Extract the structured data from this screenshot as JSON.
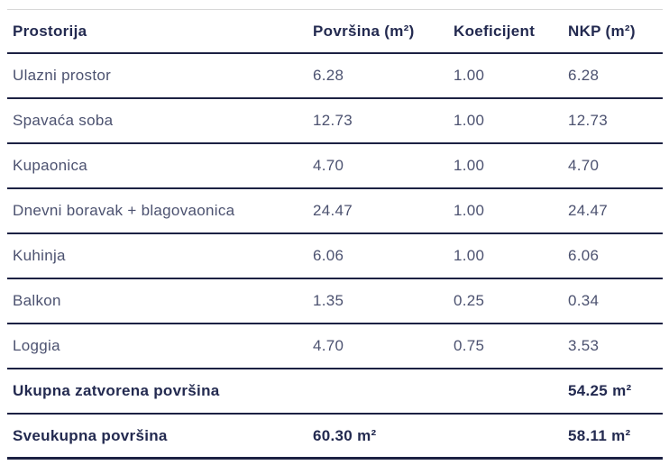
{
  "table": {
    "columns": [
      "Prostorija",
      "Površina (m²)",
      "Koeficijent",
      "NKP (m²)"
    ],
    "rows": [
      {
        "name": "Ulazni prostor",
        "povrsina": "6.28",
        "koeficijent": "1.00",
        "nkp": "6.28"
      },
      {
        "name": "Spavaća soba",
        "povrsina": "12.73",
        "koeficijent": "1.00",
        "nkp": "12.73"
      },
      {
        "name": "Kupaonica",
        "povrsina": "4.70",
        "koeficijent": "1.00",
        "nkp": "4.70"
      },
      {
        "name": "Dnevni boravak + blagovaonica",
        "povrsina": "24.47",
        "koeficijent": "1.00",
        "nkp": "24.47"
      },
      {
        "name": "Kuhinja",
        "povrsina": "6.06",
        "koeficijent": "1.00",
        "nkp": "6.06"
      },
      {
        "name": "Balkon",
        "povrsina": "1.35",
        "koeficijent": "0.25",
        "nkp": "0.34"
      },
      {
        "name": "Loggia",
        "povrsina": "4.70",
        "koeficijent": "0.75",
        "nkp": "3.53"
      }
    ],
    "summary": [
      {
        "name": "Ukupna zatvorena površina",
        "povrsina": "",
        "koeficijent": "",
        "nkp": "54.25 m²"
      },
      {
        "name": "Sveukupna površina",
        "povrsina": "60.30 m²",
        "koeficijent": "",
        "nkp": "58.11 m²"
      }
    ]
  },
  "colors": {
    "background": "#ffffff",
    "heading_text": "#232a50",
    "body_text": "#4c5270",
    "row_separator": "#1c2143",
    "top_border": "#d8d8d8"
  }
}
